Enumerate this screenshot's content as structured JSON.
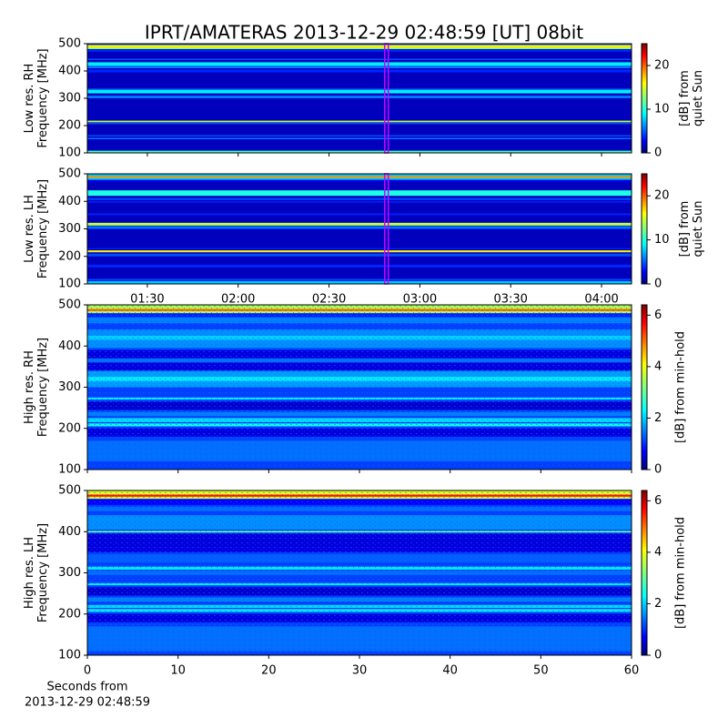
{
  "chart_data": [
    {
      "type": "spectrogram",
      "title": "IPRT/AMATERAS 2013-12-29 02:48:59 [UT]   08bit",
      "ylabel": [
        "Low res. RH",
        "Frequency [MHz]"
      ],
      "ylim": [
        100,
        500
      ],
      "yticks": [
        100,
        200,
        300,
        400,
        500
      ],
      "xlim": [
        70.2,
        249.9
      ],
      "xticks": [
        90,
        120,
        150,
        180,
        210,
        240
      ],
      "clim": [
        0,
        25
      ],
      "cticks": [
        0,
        10,
        20
      ],
      "clabel": [
        "[dB] from",
        "quiet Sun"
      ],
      "marker": 168.98,
      "marker_color": "#cc00ff",
      "background": 1.5,
      "bands": {
        "lo": [
          100,
          150,
          160,
          205,
          212,
          300,
          318,
          330,
          395,
          410,
          420,
          440,
          470,
          480,
          485,
          495
        ],
        "hi": [
          108,
          155,
          165,
          210,
          218,
          310,
          330,
          335,
          405,
          420,
          432,
          445,
          478,
          485,
          495,
          500
        ],
        "values": [
          11,
          6,
          5,
          5,
          14,
          6,
          9,
          6,
          4,
          6,
          9,
          5,
          4,
          12,
          16,
          5
        ]
      }
    },
    {
      "type": "spectrogram",
      "ylabel": [
        "Low res. LH",
        "Frequency [MHz]"
      ],
      "ylim": [
        100,
        500
      ],
      "yticks": [
        100,
        200,
        300,
        400,
        500
      ],
      "xlim": [
        70.2,
        249.9
      ],
      "xticks": [
        {
          "value": 90,
          "label": "01:30"
        },
        {
          "value": 120,
          "label": "02:00"
        },
        {
          "value": 150,
          "label": "02:30"
        },
        {
          "value": 180,
          "label": "03:00"
        },
        {
          "value": 210,
          "label": "03:30"
        },
        {
          "value": 240,
          "label": "04:00"
        }
      ],
      "clim": [
        0,
        25
      ],
      "cticks": [
        0,
        10,
        20
      ],
      "clabel": [
        "[dB] from",
        "quiet Sun"
      ],
      "marker": 168.98,
      "marker_color": "#cc00ff",
      "background": 1.5,
      "bands": {
        "lo": [
          100,
          112,
          160,
          200,
          215,
          226,
          300,
          312,
          350,
          395,
          405,
          420,
          470,
          478,
          485,
          492
        ],
        "hi": [
          110,
          118,
          170,
          210,
          222,
          230,
          310,
          322,
          356,
          400,
          412,
          440,
          475,
          485,
          492,
          500
        ],
        "values": [
          8,
          5,
          4,
          5,
          16,
          4,
          6,
          14,
          4,
          4,
          5,
          10,
          3,
          8,
          18,
          8
        ]
      }
    },
    {
      "type": "spectrogram",
      "ylabel": [
        "High res. RH",
        "Frequency [MHz]"
      ],
      "ylim": [
        100,
        500
      ],
      "yticks": [
        100,
        200,
        300,
        400,
        500
      ],
      "xlim": [
        0,
        60
      ],
      "xticks": [
        0,
        10,
        20,
        30,
        40,
        50,
        60
      ],
      "clim": [
        0,
        6.4
      ],
      "cticks": [
        0,
        2,
        4,
        6
      ],
      "clabel": [
        "[dB] from min-hold"
      ],
      "background": 1.2,
      "bands": {
        "lo": [
          120,
          180,
          205,
          215,
          230,
          245,
          270,
          300,
          315,
          340,
          360,
          395,
          415,
          455,
          470,
          480,
          485
        ],
        "hi": [
          170,
          200,
          212,
          225,
          240,
          265,
          275,
          340,
          325,
          390,
          370,
          440,
          425,
          470,
          478,
          500,
          490
        ],
        "values": [
          1.5,
          0.6,
          2.5,
          2.2,
          1.6,
          0.5,
          2.3,
          1.8,
          2.3,
          0.6,
          1.5,
          1.7,
          2.1,
          1.6,
          1.0,
          3.5,
          5
        ]
      }
    },
    {
      "type": "spectrogram",
      "ylabel": [
        "High res. LH",
        "Frequency [MHz]"
      ],
      "ylim": [
        100,
        500
      ],
      "yticks": [
        100,
        200,
        300,
        400,
        500
      ],
      "xlim": [
        0,
        60
      ],
      "xticks": [
        0,
        10,
        20,
        30,
        40,
        50,
        60
      ],
      "xlabel": [
        "Seconds from",
        "2013-12-29 02:48:59"
      ],
      "clim": [
        0,
        6.4
      ],
      "cticks": [
        0,
        2,
        4,
        6
      ],
      "clabel": [
        "[dB] from min-hold"
      ],
      "background": 1.2,
      "bands": {
        "lo": [
          110,
          180,
          205,
          215,
          230,
          245,
          270,
          295,
          308,
          325,
          350,
          398,
          405,
          450,
          465,
          480,
          485
        ],
        "hi": [
          170,
          200,
          212,
          222,
          240,
          265,
          275,
          305,
          315,
          345,
          395,
          402,
          440,
          460,
          478,
          500,
          490
        ],
        "values": [
          1.5,
          0.6,
          2.3,
          2.2,
          1.6,
          0.5,
          2.3,
          1.5,
          2.3,
          1.4,
          0.6,
          3.0,
          1.7,
          1.5,
          0.8,
          3.8,
          5.5
        ]
      }
    }
  ]
}
